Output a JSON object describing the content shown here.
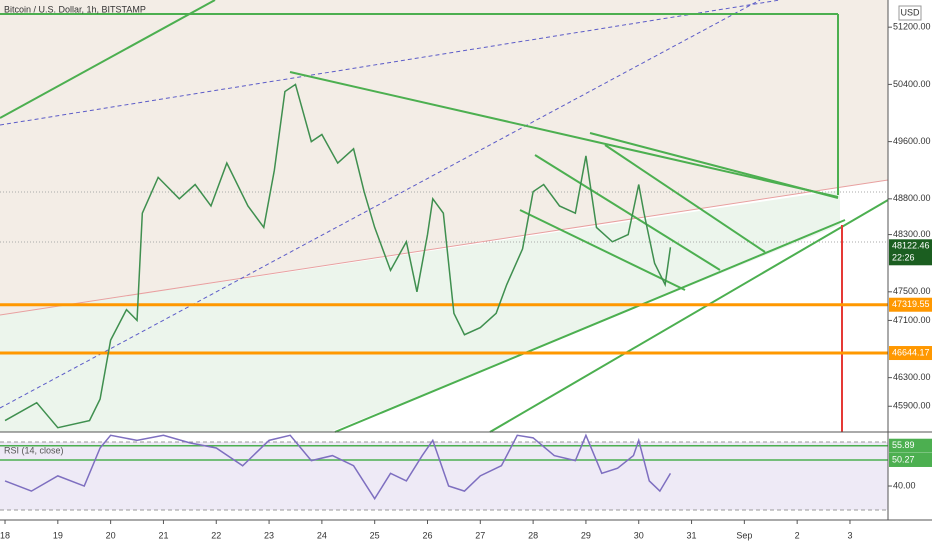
{
  "chart_data": [
    {
      "type": "line",
      "title": "Bitcoin / U.S. Dollar, 1h, BITSTAMP",
      "currency": "USD",
      "color": "#3f8f4f",
      "x": [
        18.0,
        18.6,
        19.0,
        19.6,
        19.8,
        20.0,
        20.3,
        20.5,
        20.6,
        20.9,
        21.3,
        21.6,
        21.9,
        22.2,
        22.6,
        22.9,
        23.1,
        23.3,
        23.5,
        23.8,
        24.0,
        24.3,
        24.6,
        24.8,
        25.0,
        25.3,
        25.6,
        25.8,
        26.0,
        26.1,
        26.3,
        26.5,
        26.7,
        27.0,
        27.3,
        27.5,
        27.8,
        28.0,
        28.2,
        28.5,
        28.8,
        29.0,
        29.2,
        29.5,
        29.8,
        30.0,
        30.1,
        30.3,
        30.5,
        30.6
      ],
      "values": [
        45700,
        45950,
        45600,
        45700,
        46000,
        46825,
        47250,
        47100,
        48600,
        49100,
        48800,
        49000,
        48700,
        49300,
        48700,
        48400,
        49200,
        50300,
        50400,
        49600,
        49700,
        49300,
        49500,
        48900,
        48400,
        47800,
        48200,
        47500,
        48300,
        48800,
        48600,
        47200,
        46900,
        47000,
        47200,
        47600,
        48100,
        48900,
        49000,
        48700,
        48600,
        49400,
        48400,
        48200,
        48300,
        49000,
        48600,
        47900,
        47600,
        48122.46
      ],
      "ylim": [
        45540,
        51580
      ],
      "yticks": [
        {
          "value": 51200,
          "label": "51200.00"
        },
        {
          "value": 50400,
          "label": "50400.00"
        },
        {
          "value": 49600,
          "label": "49600.00"
        },
        {
          "value": 48800,
          "label": "48800.00"
        },
        {
          "value": 48300,
          "label": "48300.00"
        },
        {
          "value": 47500,
          "label": "47500.00"
        },
        {
          "value": 47100,
          "label": "47100.00"
        },
        {
          "value": 46300,
          "label": "46300.00"
        },
        {
          "value": 45900,
          "label": "45900.00"
        }
      ],
      "xlim": [
        17.905,
        34.72
      ],
      "xticks": [
        18,
        19,
        20,
        21,
        22,
        23,
        24,
        25,
        26,
        27,
        28,
        29,
        30,
        31,
        {
          "value": 32,
          "label": "Sep"
        },
        {
          "value": 33,
          "label": "2"
        },
        {
          "value": 34,
          "label": "3"
        }
      ],
      "levels": [
        {
          "value": 47319.55,
          "color": "#ff9800"
        },
        {
          "value": 46644.17,
          "color": "#ff9800"
        }
      ],
      "last": {
        "value": 48122.46,
        "countdown": "22:26",
        "color": "#1b5e20"
      }
    },
    {
      "type": "line",
      "title": "RSI (14, close)",
      "color": "#7e6fc0",
      "x": [
        18.0,
        18.5,
        19.0,
        19.5,
        19.8,
        20.0,
        20.5,
        21.0,
        21.5,
        22.0,
        22.5,
        23.0,
        23.4,
        23.8,
        24.2,
        24.6,
        25.0,
        25.3,
        25.6,
        25.9,
        26.1,
        26.4,
        26.7,
        27.0,
        27.4,
        27.7,
        28.0,
        28.4,
        28.8,
        29.0,
        29.3,
        29.6,
        29.9,
        30.0,
        30.2,
        30.4,
        30.6
      ],
      "values": [
        42,
        38,
        44,
        40,
        55,
        60,
        58,
        60,
        57,
        55,
        48,
        58,
        60,
        50,
        52,
        48,
        35,
        45,
        42,
        52,
        58,
        40,
        38,
        44,
        48,
        60,
        59,
        52,
        50,
        60,
        45,
        47,
        52,
        58,
        42,
        38,
        45
      ],
      "ylim": [
        26.6,
        61.3
      ],
      "yticks": [
        {
          "value": 40,
          "label": "40.00"
        }
      ],
      "levels": [
        {
          "value": 55.89,
          "color": "#4caf50"
        },
        {
          "value": 50.27,
          "color": "#4caf50"
        }
      ]
    }
  ]
}
